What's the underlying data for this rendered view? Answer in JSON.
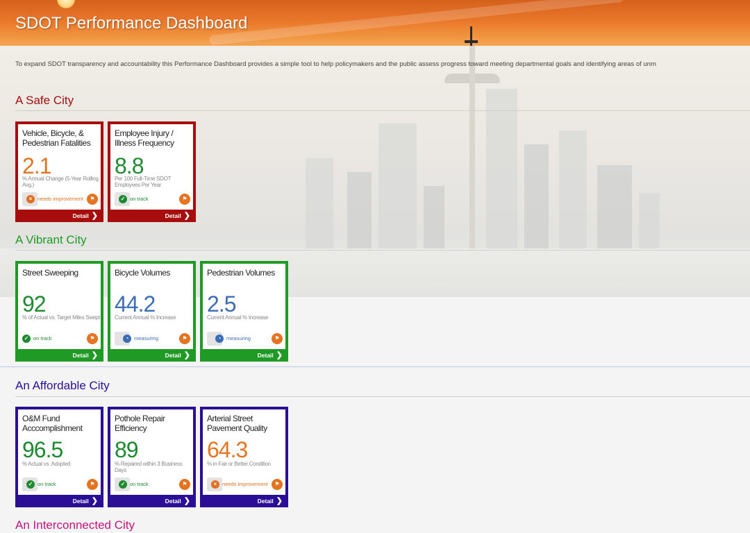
{
  "header": {
    "title": "SDOT Performance Dashboard"
  },
  "intro": "To expand SDOT transparency and accountability this Performance Dashboard provides a simple tool to help policymakers and the public assess progress toward meeting departmental goals and identifying areas of unm",
  "colors": {
    "safe": "#a80d0d",
    "vibrant": "#1f9a25",
    "affordable": "#2a0f96",
    "interconnected": "#c4127d",
    "orange": "#e5731f",
    "green": "#1e8a2f",
    "blue": "#3d6db7"
  },
  "sections": [
    {
      "title": "A Safe City",
      "cards": [
        {
          "title": "Vehicle, Bicycle, & Pedestrian Fatalities",
          "value": "2.1",
          "desc": "% Annual Change (5-Year Rolling Avg.)",
          "status": "needs improvement",
          "detail": "Detail"
        },
        {
          "title": "Employee Injury / Illness Frequency",
          "value": "8.8",
          "desc": "Per 100 Full-Time SDOT Employees Per Year",
          "status": "on track",
          "detail": "Detail"
        }
      ]
    },
    {
      "title": "A Vibrant City",
      "cards": [
        {
          "title": "Street Sweeping",
          "value": "92",
          "desc": "% of Actual vs. Target Miles Swept",
          "status": "on track",
          "detail": "Detail"
        },
        {
          "title": "Bicycle Volumes",
          "value": "44.2",
          "desc": "Current Annual % Increase",
          "status": "measuring",
          "detail": "Detail"
        },
        {
          "title": "Pedestrian Volumes",
          "value": "2.5",
          "desc": "Current Annual % Increase",
          "status": "measuring",
          "detail": "Detail"
        }
      ]
    },
    {
      "title": "An Affordable City",
      "cards": [
        {
          "title": "O&M Fund Acccomplishment",
          "value": "96.5",
          "desc": "% Actual vs. Adopted",
          "status": "on track",
          "detail": "Detail"
        },
        {
          "title": "Pothole Repair Efficiency",
          "value": "89",
          "desc": "% Repaired within 3 Business Days",
          "status": "on track",
          "detail": "Detail"
        },
        {
          "title": "Arterial Street Pavement Quality",
          "value": "64.3",
          "desc": "% in Fair or Better Condition",
          "status": "needs improvement",
          "detail": "Detail"
        }
      ]
    },
    {
      "title": "An Interconnected City",
      "cards": []
    }
  ]
}
